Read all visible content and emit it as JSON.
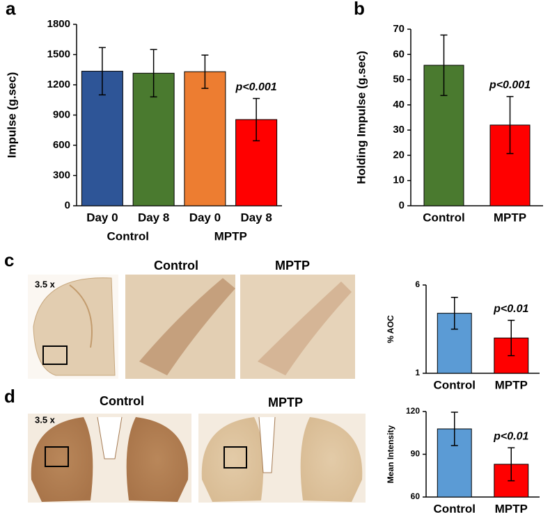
{
  "chart_data": [
    {
      "type": "bar",
      "panel": "a",
      "ylabel": "Impulse (g.sec)",
      "categories": [
        "Day 0",
        "Day 8",
        "Day 0",
        "Day 8"
      ],
      "group_labels": [
        "Control",
        "MPTP"
      ],
      "values": [
        1335,
        1315,
        1330,
        855
      ],
      "errors": [
        235,
        235,
        165,
        210
      ],
      "colors": [
        "#2e5597",
        "#4a7a2f",
        "#ed7d31",
        "#ff0000"
      ],
      "ylim": [
        0,
        1800
      ],
      "yticks": [
        0,
        300,
        600,
        900,
        1200,
        1500,
        1800
      ],
      "annotation": "p<0.001"
    },
    {
      "type": "bar",
      "panel": "b",
      "ylabel": "Holding Impulse (g.sec)",
      "categories": [
        "Control",
        "MPTP"
      ],
      "values": [
        55.7,
        32
      ],
      "errors": [
        12,
        11.3
      ],
      "colors": [
        "#4a7a2f",
        "#ff0000"
      ],
      "ylim": [
        0,
        70
      ],
      "yticks": [
        0,
        10,
        20,
        30,
        40,
        50,
        60,
        70
      ],
      "annotation": "p<0.001"
    },
    {
      "type": "bar",
      "panel": "c",
      "ylabel": "% AOC",
      "categories": [
        "Control",
        "MPTP"
      ],
      "values": [
        4.4,
        3.0
      ],
      "errors": [
        0.9,
        1.0
      ],
      "colors": [
        "#5b9bd5",
        "#ff0000"
      ],
      "ylim": [
        1,
        6
      ],
      "yticks": [
        1,
        6
      ],
      "annotation": "p<0.01"
    },
    {
      "type": "bar",
      "panel": "d",
      "ylabel": "Mean Intensity",
      "categories": [
        "Control",
        "MPTP"
      ],
      "values": [
        107.8,
        83
      ],
      "errors": [
        11.7,
        11.6
      ],
      "colors": [
        "#5b9bd5",
        "#ff0000"
      ],
      "ylim": [
        60,
        120
      ],
      "yticks": [
        60,
        90,
        120
      ],
      "annotation": "p<0.01"
    }
  ],
  "images": {
    "c": {
      "magnification": "3.5 x",
      "control": "Control",
      "mptp": "MPTP"
    },
    "d": {
      "magnification": "3.5 x",
      "control": "Control",
      "mptp": "MPTP"
    }
  }
}
